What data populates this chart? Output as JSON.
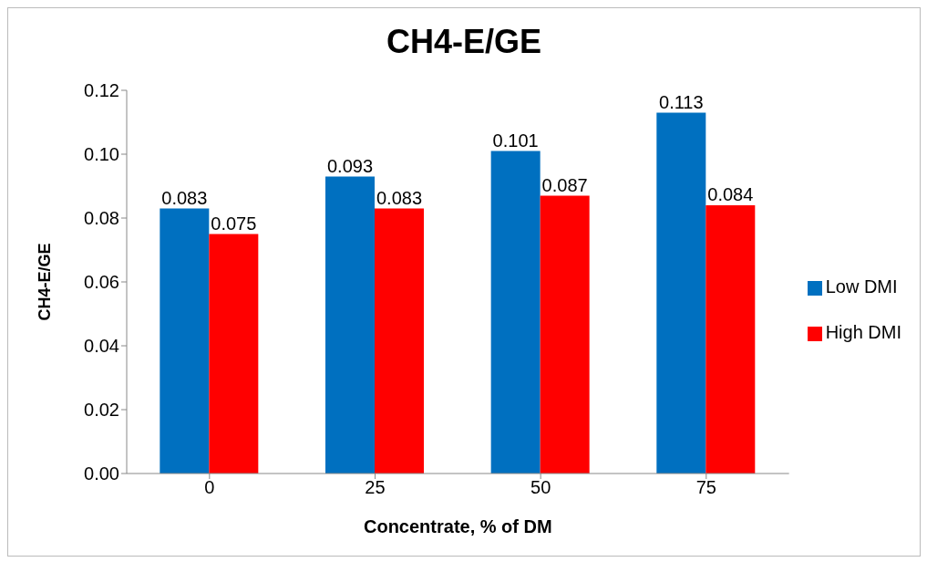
{
  "chart_data": {
    "type": "bar",
    "title": "CH4-E/GE",
    "xlabel": "Concentrate, % of DM",
    "ylabel": "CH4-E/GE",
    "categories": [
      "0",
      "25",
      "50",
      "75"
    ],
    "series": [
      {
        "name": "Low DMI",
        "color": "#0070c0",
        "values": [
          0.083,
          0.093,
          0.101,
          0.113
        ]
      },
      {
        "name": "High DMI",
        "color": "#ff0000",
        "values": [
          0.075,
          0.083,
          0.087,
          0.084
        ]
      }
    ],
    "ylim": [
      0,
      0.12
    ],
    "yticks": [
      {
        "value": 0,
        "label": "0.00"
      },
      0.02,
      0.04,
      0.06,
      0.08,
      {
        "value": 0.1,
        "label": "0.10"
      },
      0.12
    ],
    "data_labels": true,
    "grid": false,
    "legend": "right"
  }
}
